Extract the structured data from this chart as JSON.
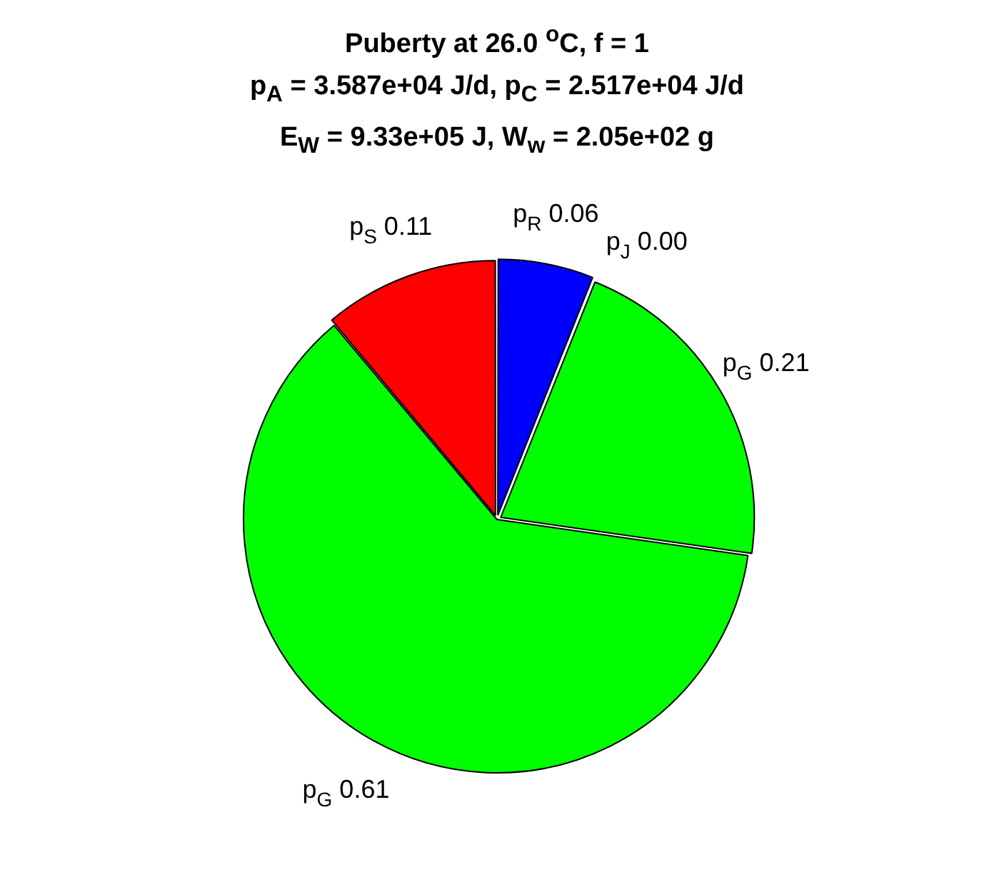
{
  "chart_data": {
    "type": "pie",
    "title": "Puberty at 26.0 $^{o}$C, f = 1",
    "subtitle": "p$_{A}$ = 3.587e+04 J/d,  p$_{C}$ = 2.517e+04 J/d",
    "annotations": [
      "E$_{W}$ = 9.33e+05 J, W$_{w}$ = 2.05e+02 g"
    ],
    "categories": [
      "p$_{R}$",
      "p$_{J}$",
      "p$_{G}$",
      "p$_{G}$",
      "p$_{S}$"
    ],
    "values": [
      0.06,
      0.0,
      0.21,
      0.61,
      0.11
    ],
    "colors": [
      "#0000ff",
      "#00ffff",
      "#00ff00",
      "#00ff00",
      "#ff0000"
    ],
    "value_labels": [
      "0.06",
      "0.00",
      "0.21",
      "0.61",
      "0.11"
    ],
    "legend": false
  }
}
